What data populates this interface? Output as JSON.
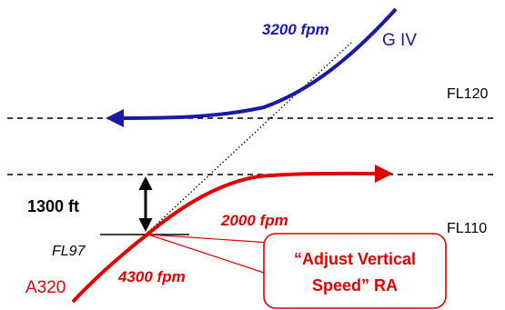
{
  "labels": {
    "giv_rate": "3200 fpm",
    "giv_name": "G IV",
    "fl120": "FL120",
    "fl110": "FL110",
    "separation": "1300 ft",
    "a320_rate_after": "2000 fpm",
    "fl97": "FL97",
    "a320_name": "A320",
    "a320_rate_before": "4300 fpm",
    "callout_line1": "“Adjust Vertical",
    "callout_line2": "Speed” RA"
  },
  "colors": {
    "giv": "#1a1aa6",
    "a320": "#e00000",
    "neutral": "#000000"
  }
}
